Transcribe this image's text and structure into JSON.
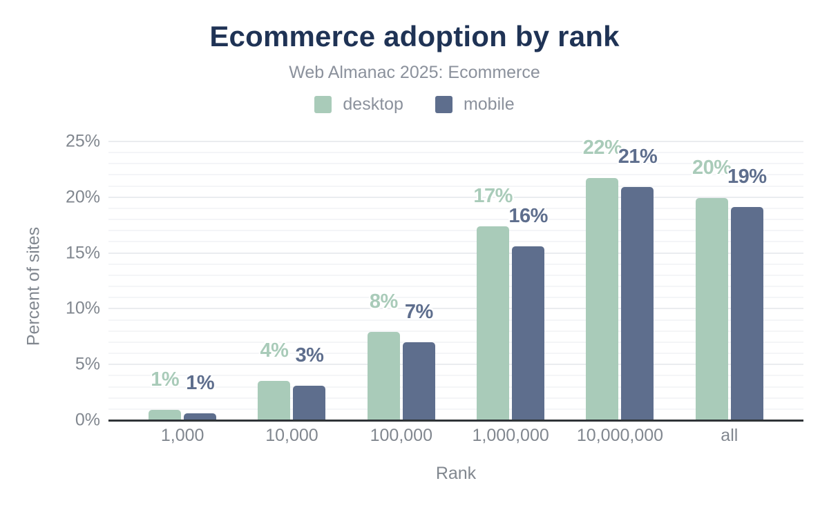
{
  "chart_data": {
    "type": "bar",
    "title": "Ecommerce adoption by rank",
    "subtitle": "Web Almanac 2025: Ecommerce",
    "xlabel": "Rank",
    "ylabel": "Percent of sites",
    "categories": [
      "1,000",
      "10,000",
      "100,000",
      "1,000,000",
      "10,000,000",
      "all"
    ],
    "series": [
      {
        "name": "desktop",
        "color": "#a9cbb9",
        "values": [
          0.9,
          3.5,
          7.9,
          17.4,
          21.7,
          19.9
        ],
        "labels": [
          "1%",
          "4%",
          "8%",
          "17%",
          "22%",
          "20%"
        ]
      },
      {
        "name": "mobile",
        "color": "#5e6e8d",
        "values": [
          0.6,
          3.1,
          7.0,
          15.6,
          20.9,
          19.1
        ],
        "labels": [
          "1%",
          "3%",
          "7%",
          "16%",
          "21%",
          "19%"
        ]
      }
    ],
    "ylim": [
      0,
      25
    ],
    "yticks": [
      {
        "v": 0,
        "label": "0%"
      },
      {
        "v": 5,
        "label": "5%"
      },
      {
        "v": 10,
        "label": "10%"
      },
      {
        "v": 15,
        "label": "15%"
      },
      {
        "v": 20,
        "label": "20%"
      },
      {
        "v": 25,
        "label": "25%"
      }
    ],
    "grid": {
      "minor_step_pct": 1,
      "major_step_pct": 5,
      "orientation": "horizontal"
    },
    "legend_position": "top"
  },
  "colors": {
    "background": "#ffffff",
    "title": "#1f3355",
    "subtitle": "#8b919c",
    "axis_text": "#81878f",
    "axis_line": "#2f3337",
    "gridline_minor": "#f4f5f7",
    "gridline_major": "#eaecef",
    "desktop": "#a9cbb9",
    "mobile": "#5e6e8d"
  }
}
